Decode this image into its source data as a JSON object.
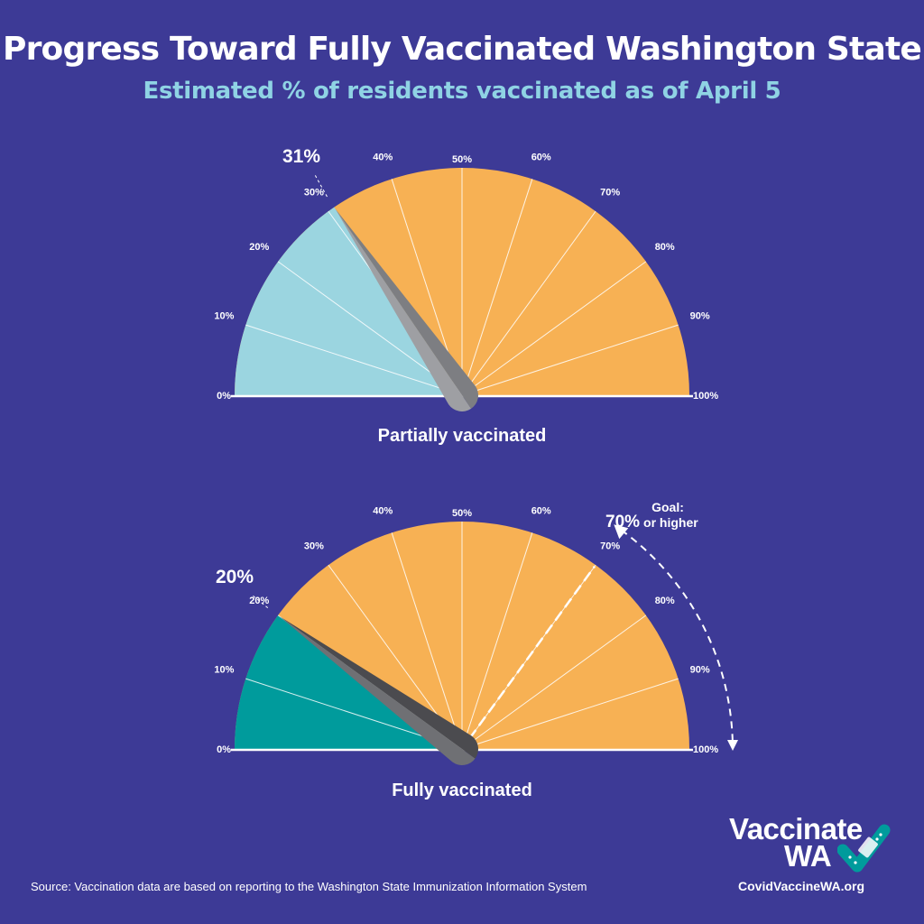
{
  "title": "Progress Toward Fully Vaccinated Washington State",
  "subtitle": "Estimated % of residents vaccinated as of April 5",
  "source": "Source: Vaccination data are based on reporting to the Washington State Immunization Information System",
  "brand": {
    "line1": "Vaccinate",
    "line2": "WA",
    "url": "CovidVaccineWA.org",
    "icon": "bandage-check-icon"
  },
  "colors": {
    "background": "#3d3a96",
    "remaining": "#f7b154",
    "partial_fill": "#9bd5e0",
    "full_fill": "#009b9c",
    "needle_partial": "#9e9fa3",
    "needle_full": "#4b4b4f"
  },
  "chart_data": [
    {
      "type": "gauge",
      "label": "Partially vaccinated",
      "value": 31,
      "value_label": "31%",
      "range": [
        0,
        100
      ],
      "ticks": [
        "0%",
        "10%",
        "20%",
        "30%",
        "40%",
        "50%",
        "60%",
        "70%",
        "80%",
        "90%",
        "100%"
      ]
    },
    {
      "type": "gauge",
      "label": "Fully vaccinated",
      "value": 20,
      "value_label": "20%",
      "range": [
        0,
        100
      ],
      "ticks": [
        "0%",
        "10%",
        "20%",
        "30%",
        "40%",
        "50%",
        "60%",
        "70%",
        "80%",
        "90%",
        "100%"
      ],
      "goal": {
        "value": 70,
        "title": "Goal:",
        "value_label": "70%",
        "text": "or higher"
      }
    }
  ]
}
